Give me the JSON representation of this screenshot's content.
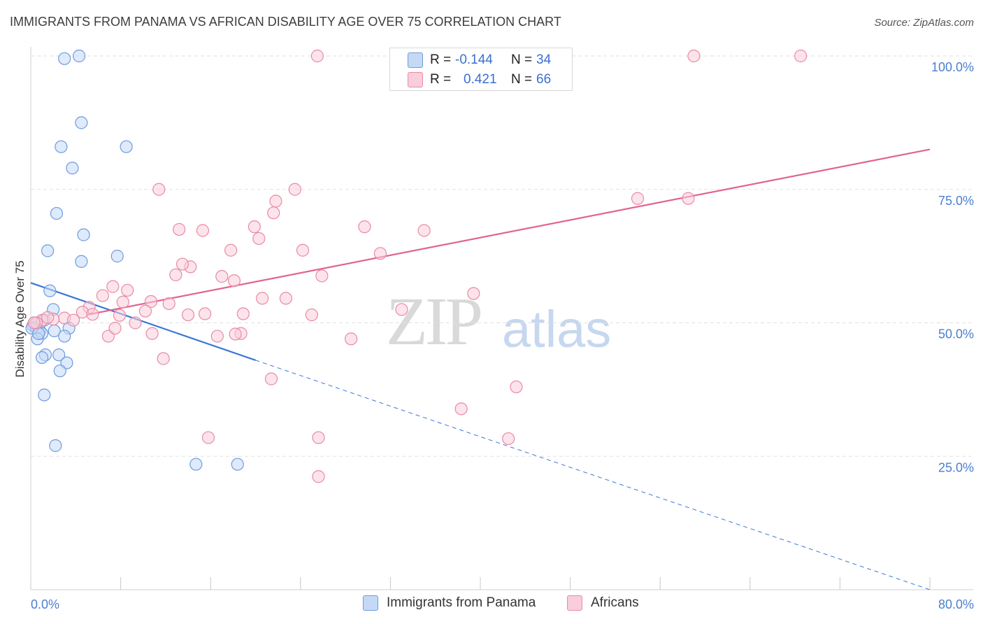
{
  "title": "IMMIGRANTS FROM PANAMA VS AFRICAN DISABILITY AGE OVER 75 CORRELATION CHART",
  "source": "Source: ZipAtlas.com",
  "watermark": {
    "zip": "ZIP",
    "atlas": "atlas"
  },
  "stats_box": {
    "rows": [
      {
        "r_label": "R =",
        "r_value": "-0.144",
        "n_label": "N =",
        "n_value": "34",
        "color": "#6d9be0",
        "fill": "#c5d9f5"
      },
      {
        "r_label": "R =",
        "r_value": "0.421",
        "n_label": "N =",
        "n_value": "66",
        "color": "#e88aa8",
        "fill": "#f9cdd9"
      }
    ]
  },
  "legend": [
    {
      "label": "Immigrants from Panama",
      "color": "#6d9be0",
      "fill": "#c5d9f5"
    },
    {
      "label": "Africans",
      "color": "#e88aa8",
      "fill": "#f9cdd9"
    }
  ],
  "chart_data": {
    "type": "scatter",
    "title": "IMMIGRANTS FROM PANAMA VS AFRICAN DISABILITY AGE OVER 75 CORRELATION CHART",
    "xlabel": "",
    "ylabel": "Disability Age Over 75",
    "xlim": [
      0,
      80
    ],
    "ylim": [
      0,
      100
    ],
    "x_tick_labels": [
      "0.0%",
      "80.0%"
    ],
    "y_tick_labels": [
      "100.0%",
      "75.0%",
      "50.0%",
      "25.0%"
    ],
    "y_ticks": [
      100,
      75,
      50,
      25
    ],
    "grid": true,
    "legend_position": "bottom",
    "series": [
      {
        "name": "Immigrants from Panama",
        "color": "#6d9be0",
        "fill": "#c5d9f5",
        "points": [
          [
            3.0,
            99.5
          ],
          [
            4.3,
            100.0
          ],
          [
            4.5,
            87.5
          ],
          [
            8.5,
            83.0
          ],
          [
            2.7,
            83.0
          ],
          [
            3.7,
            79.0
          ],
          [
            2.3,
            70.5
          ],
          [
            4.7,
            66.5
          ],
          [
            1.5,
            63.5
          ],
          [
            7.7,
            62.5
          ],
          [
            4.5,
            61.5
          ],
          [
            1.7,
            56.0
          ],
          [
            2.0,
            52.5
          ],
          [
            0.2,
            49.5
          ],
          [
            0.5,
            49.0
          ],
          [
            0.8,
            48.5
          ],
          [
            1.2,
            50.5
          ],
          [
            0.3,
            50.0
          ],
          [
            1.0,
            48.0
          ],
          [
            0.1,
            49.0
          ],
          [
            0.6,
            47.0
          ],
          [
            3.4,
            49.0
          ],
          [
            2.1,
            48.5
          ],
          [
            3.0,
            47.5
          ],
          [
            1.3,
            44.0
          ],
          [
            2.5,
            44.0
          ],
          [
            1.0,
            43.5
          ],
          [
            3.2,
            42.5
          ],
          [
            2.6,
            41.0
          ],
          [
            1.2,
            36.5
          ],
          [
            2.2,
            27.0
          ],
          [
            14.7,
            23.5
          ],
          [
            18.4,
            23.5
          ],
          [
            0.7,
            48.0
          ]
        ]
      },
      {
        "name": "Africans",
        "color": "#e88aa8",
        "fill": "#f9cdd9",
        "points": [
          [
            25.5,
            100.0
          ],
          [
            59.0,
            100.0
          ],
          [
            68.5,
            100.0
          ],
          [
            11.4,
            75.0
          ],
          [
            23.5,
            75.0
          ],
          [
            21.8,
            72.8
          ],
          [
            54.0,
            73.3
          ],
          [
            58.5,
            73.3
          ],
          [
            21.6,
            70.6
          ],
          [
            13.2,
            67.5
          ],
          [
            15.3,
            67.3
          ],
          [
            19.9,
            68.0
          ],
          [
            29.7,
            68.0
          ],
          [
            35.0,
            67.3
          ],
          [
            20.3,
            65.8
          ],
          [
            17.8,
            63.6
          ],
          [
            24.2,
            63.6
          ],
          [
            31.1,
            63.0
          ],
          [
            14.2,
            60.5
          ],
          [
            12.9,
            59.0
          ],
          [
            17.0,
            58.7
          ],
          [
            25.9,
            58.8
          ],
          [
            18.1,
            57.9
          ],
          [
            7.3,
            56.8
          ],
          [
            8.6,
            56.1
          ],
          [
            6.4,
            55.1
          ],
          [
            10.7,
            54.0
          ],
          [
            8.2,
            53.9
          ],
          [
            12.3,
            53.6
          ],
          [
            20.6,
            54.6
          ],
          [
            22.7,
            54.6
          ],
          [
            39.4,
            55.5
          ],
          [
            5.2,
            52.9
          ],
          [
            4.6,
            52.0
          ],
          [
            5.5,
            51.6
          ],
          [
            10.2,
            52.2
          ],
          [
            7.9,
            51.4
          ],
          [
            15.5,
            51.7
          ],
          [
            18.9,
            51.7
          ],
          [
            25.0,
            51.5
          ],
          [
            33.0,
            52.5
          ],
          [
            3.0,
            50.9
          ],
          [
            3.8,
            50.5
          ],
          [
            9.3,
            50.0
          ],
          [
            2.0,
            50.7
          ],
          [
            1.0,
            50.5
          ],
          [
            0.5,
            50.0
          ],
          [
            6.9,
            47.5
          ],
          [
            10.8,
            48.0
          ],
          [
            16.6,
            47.5
          ],
          [
            18.7,
            48.0
          ],
          [
            28.5,
            47.0
          ],
          [
            11.8,
            43.3
          ],
          [
            21.4,
            39.5
          ],
          [
            43.2,
            38.0
          ],
          [
            38.3,
            33.9
          ],
          [
            25.6,
            28.5
          ],
          [
            15.8,
            28.5
          ],
          [
            42.5,
            28.3
          ],
          [
            25.6,
            21.2
          ],
          [
            0.3,
            50.0
          ],
          [
            1.5,
            51.0
          ],
          [
            7.5,
            49.0
          ],
          [
            18.2,
            47.9
          ],
          [
            14.0,
            51.5
          ],
          [
            13.5,
            61.0
          ]
        ]
      }
    ],
    "trendlines": [
      {
        "series": "Immigrants from Panama",
        "x1": 0,
        "y1": 57.5,
        "x2": 20,
        "y2": 43.0,
        "dashed_to": [
          80,
          0
        ]
      },
      {
        "series": "Africans",
        "x1": 5,
        "y1": 51.5,
        "x2": 80,
        "y2": 82.5
      }
    ]
  }
}
